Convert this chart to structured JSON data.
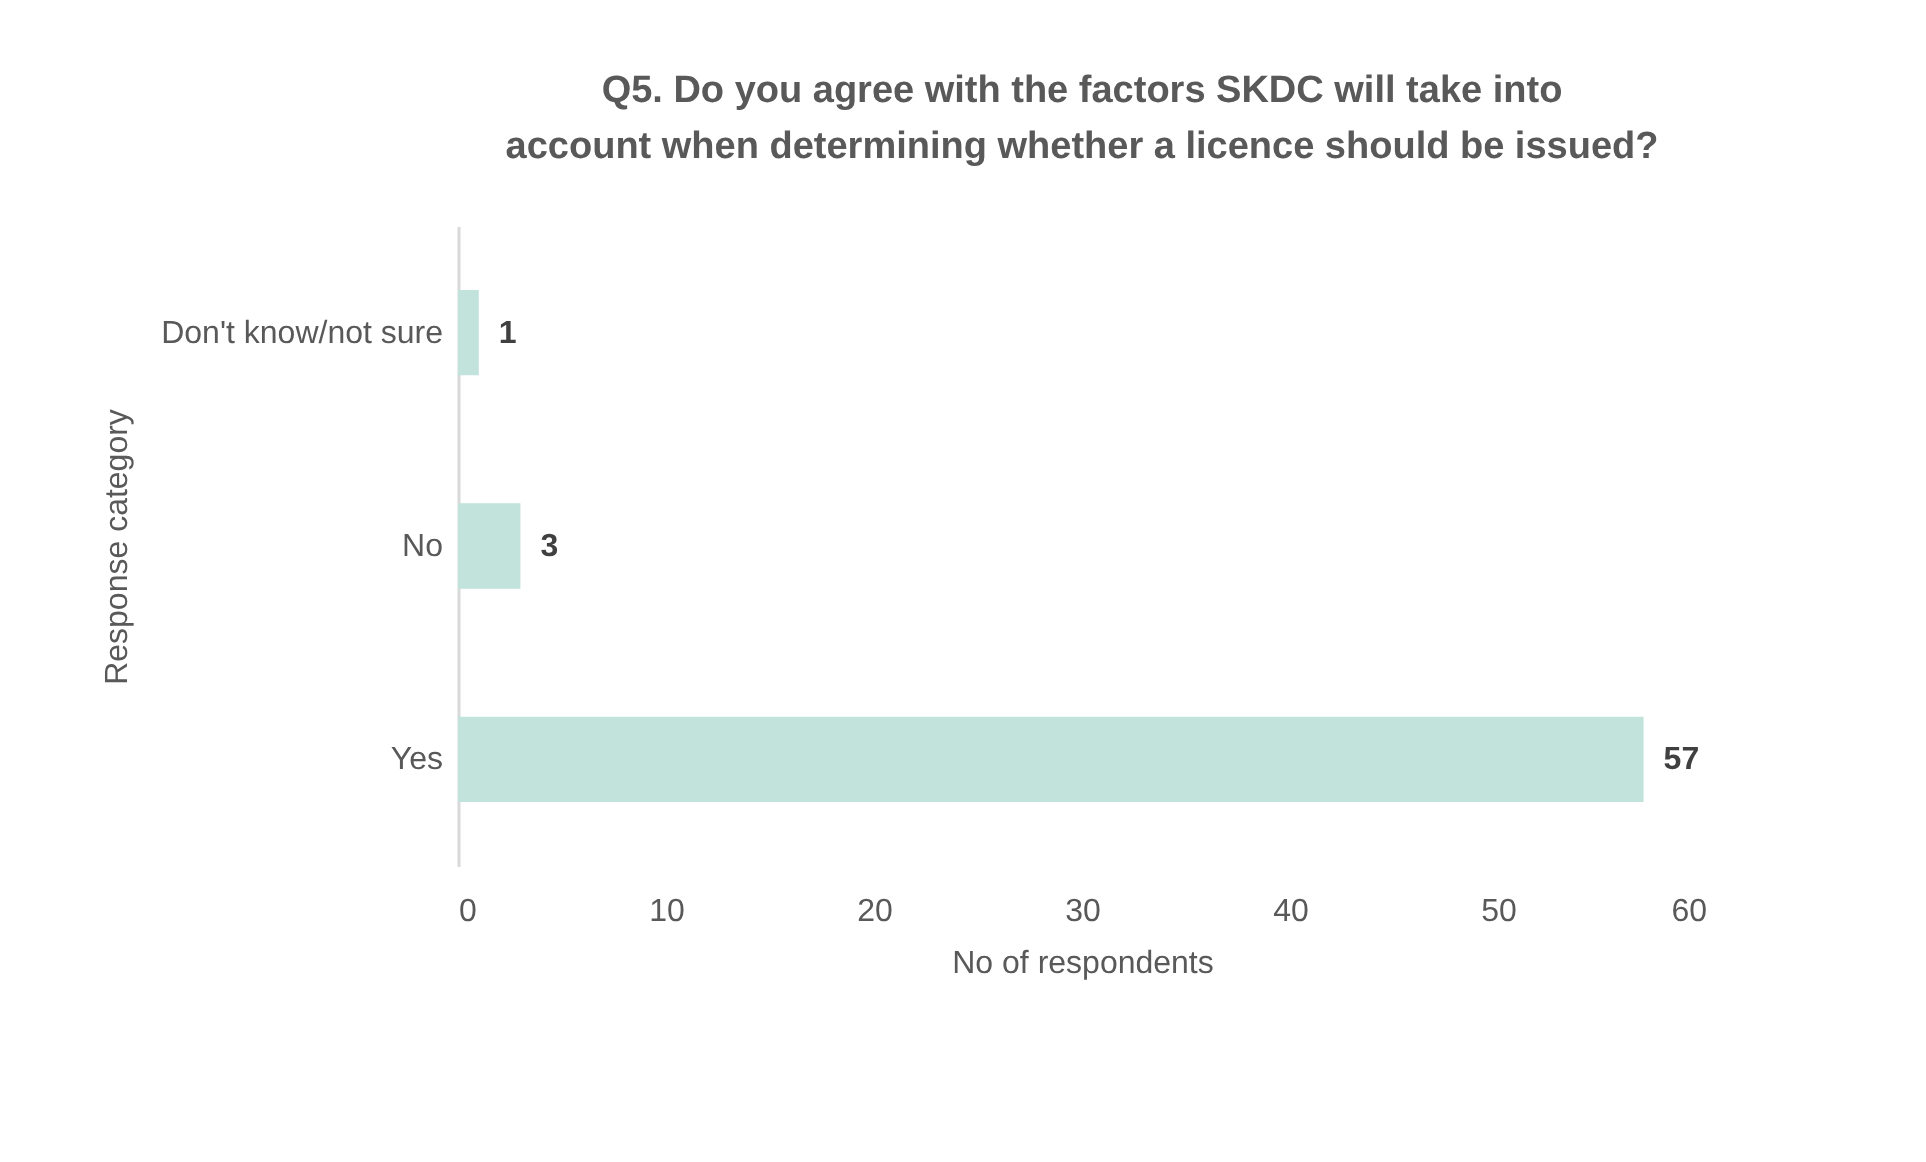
{
  "chart_data": {
    "type": "bar",
    "orientation": "horizontal",
    "title": "Q5. Do you agree with the factors SKDC will take into account when determining whether a licence should be issued?",
    "xlabel": "No of respondents",
    "ylabel": "Response category",
    "categories": [
      "Don't know/not sure",
      "No",
      "Yes"
    ],
    "values": [
      1,
      3,
      57
    ],
    "color": "#c2e2dc",
    "xlim": [
      0,
      60
    ],
    "xticks": [
      0,
      10,
      20,
      30,
      40,
      50,
      60
    ],
    "data_labels": true,
    "grid": false
  }
}
